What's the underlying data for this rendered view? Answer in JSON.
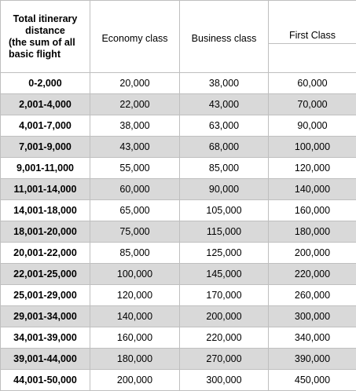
{
  "header": {
    "distance_line1": "Total itinerary",
    "distance_line2": "distance",
    "distance_note1": "(the sum of all",
    "distance_note2": "basic flight",
    "economy": "Economy class",
    "business": "Business class",
    "first": "First Class"
  },
  "rows": [
    {
      "range": "0-2,000",
      "economy": "20,000",
      "business": "38,000",
      "first": "60,000"
    },
    {
      "range": "2,001-4,000",
      "economy": "22,000",
      "business": "43,000",
      "first": "70,000"
    },
    {
      "range": "4,001-7,000",
      "economy": "38,000",
      "business": "63,000",
      "first": "90,000"
    },
    {
      "range": "7,001-9,000",
      "economy": "43,000",
      "business": "68,000",
      "first": "100,000"
    },
    {
      "range": "9,001-11,000",
      "economy": "55,000",
      "business": "85,000",
      "first": "120,000"
    },
    {
      "range": "11,001-14,000",
      "economy": "60,000",
      "business": "90,000",
      "first": "140,000"
    },
    {
      "range": "14,001-18,000",
      "economy": "65,000",
      "business": "105,000",
      "first": "160,000"
    },
    {
      "range": "18,001-20,000",
      "economy": "75,000",
      "business": "115,000",
      "first": "180,000"
    },
    {
      "range": "20,001-22,000",
      "economy": "85,000",
      "business": "125,000",
      "first": "200,000"
    },
    {
      "range": "22,001-25,000",
      "economy": "100,000",
      "business": "145,000",
      "first": "220,000"
    },
    {
      "range": "25,001-29,000",
      "economy": "120,000",
      "business": "170,000",
      "first": "260,000"
    },
    {
      "range": "29,001-34,000",
      "economy": "140,000",
      "business": "200,000",
      "first": "300,000"
    },
    {
      "range": "34,001-39,000",
      "economy": "160,000",
      "business": "220,000",
      "first": "340,000"
    },
    {
      "range": "39,001-44,000",
      "economy": "180,000",
      "business": "270,000",
      "first": "390,000"
    },
    {
      "range": "44,001-50,000",
      "economy": "200,000",
      "business": "300,000",
      "first": "450,000"
    }
  ],
  "colors": {
    "shaded_row": "#d9d9d9",
    "border": "#bfbfbf"
  }
}
